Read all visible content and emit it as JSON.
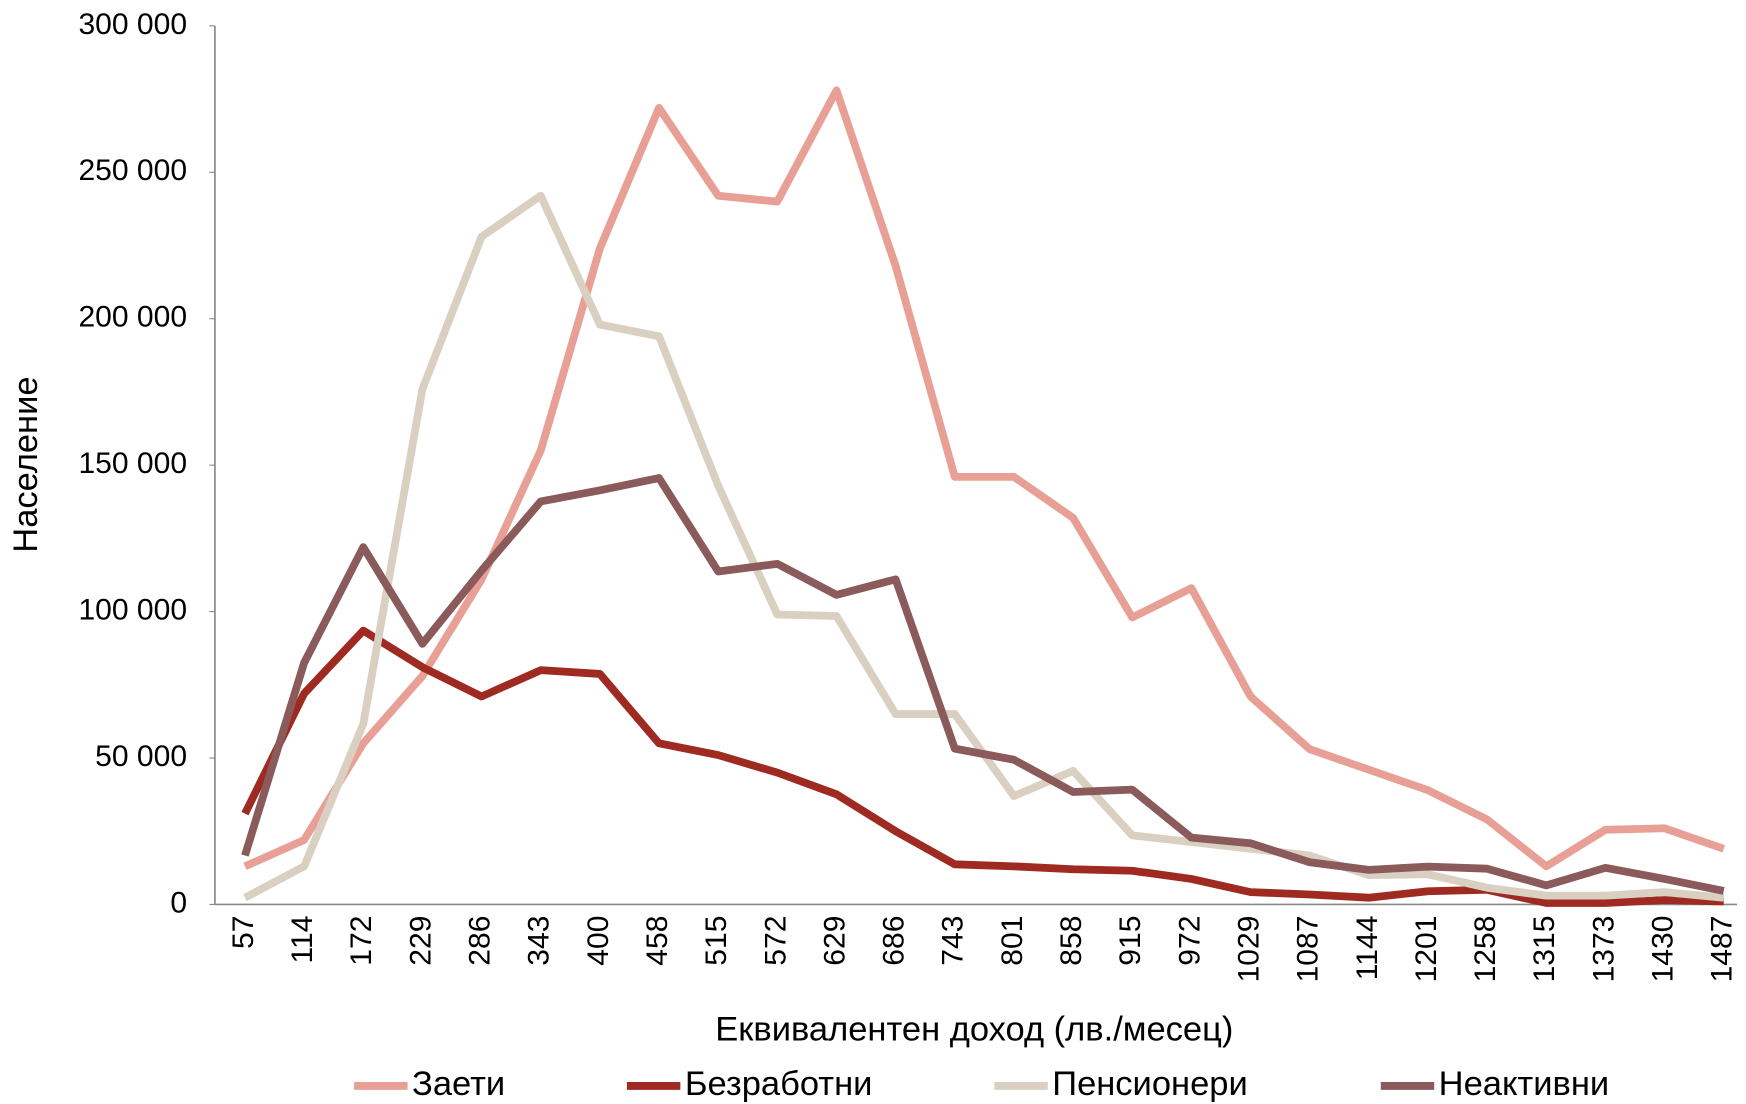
{
  "chart_data": {
    "type": "line",
    "x_label": "Еквивалентен доход (лв./месец)",
    "y_label": "Население",
    "categories": [
      "57",
      "114",
      "172",
      "229",
      "286",
      "343",
      "400",
      "458",
      "515",
      "572",
      "629",
      "686",
      "743",
      "801",
      "858",
      "915",
      "972",
      "1029",
      "1087",
      "1144",
      "1201",
      "1258",
      "1315",
      "1373",
      "1430",
      "1487"
    ],
    "series": [
      {
        "name": "Заети",
        "color": "#e8a096",
        "values": [
          13000,
          22000,
          55000,
          78000,
          111000,
          155000,
          224000,
          272000,
          242000,
          240000,
          278000,
          218000,
          146000,
          146000,
          132000,
          98000,
          108000,
          71000,
          53000,
          46000,
          39000,
          29000,
          13000,
          25500,
          26000,
          19000
        ]
      },
      {
        "name": "Безработни",
        "color": "#9e2a22",
        "values": [
          31000,
          72000,
          93500,
          81000,
          71000,
          80000,
          78700,
          55000,
          51000,
          45000,
          37600,
          25000,
          13700,
          13000,
          12000,
          11500,
          8700,
          4200,
          3400,
          2300,
          4500,
          5000,
          500,
          500,
          1500,
          1000
        ]
      },
      {
        "name": "Пенсионери",
        "color": "#d9d0c1",
        "values": [
          2300,
          13000,
          61600,
          176000,
          228000,
          242000,
          198000,
          194000,
          143000,
          99000,
          98500,
          65000,
          65000,
          37000,
          45600,
          23600,
          21300,
          19000,
          16700,
          10000,
          10300,
          5700,
          3000,
          3000,
          4200,
          2300
        ]
      },
      {
        "name": "Неактивни",
        "color": "#8b5a5a",
        "values": [
          16700,
          82500,
          122000,
          89000,
          114000,
          137600,
          141400,
          145600,
          113700,
          116300,
          105700,
          111000,
          53200,
          49400,
          38400,
          39200,
          22800,
          20900,
          14400,
          11800,
          12900,
          12200,
          6500,
          12500,
          8700,
          4600
        ]
      }
    ],
    "ylim": [
      0,
      300000
    ],
    "yticks": [
      {
        "value": 0,
        "label": "0"
      },
      {
        "value": 50000,
        "label": "50 000"
      },
      {
        "value": 100000,
        "label": "100 000"
      },
      {
        "value": 150000,
        "label": "150 000"
      },
      {
        "value": 200000,
        "label": "200 000"
      },
      {
        "value": 250000,
        "label": "250 000"
      },
      {
        "value": 300000,
        "label": "300 000"
      }
    ],
    "grid": false,
    "legend": "bottom"
  }
}
